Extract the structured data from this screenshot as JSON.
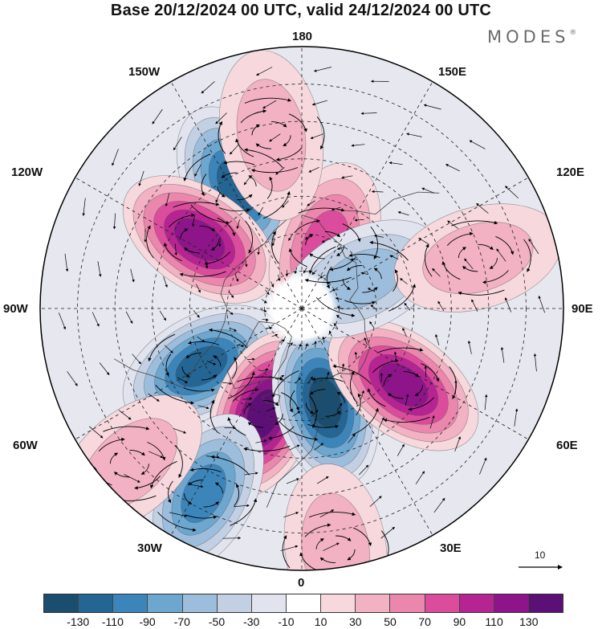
{
  "title": "Base 20/12/2024 00 UTC, valid 24/12/2024 00 UTC",
  "logo": "MODES",
  "logo_mark": "®",
  "longitude_labels": {
    "top": "180",
    "top_left": "150W",
    "top_right": "150E",
    "upper_left": "120W",
    "upper_right": "120E",
    "left": "90W",
    "right": "90E",
    "lower_left": "60W",
    "lower_right": "60E",
    "bottom_left": "30W",
    "bottom_right": "30E",
    "bottom": "0"
  },
  "reference_vector_label": "10",
  "colorbar": {
    "ticks": [
      "-130",
      "-110",
      "-90",
      "-70",
      "-50",
      "-30",
      "-10",
      "10",
      "30",
      "50",
      "70",
      "90",
      "110",
      "130"
    ],
    "colors": [
      "#1b4d6e",
      "#246594",
      "#3c85ba",
      "#6da6cf",
      "#9dbddc",
      "#c3d0e4",
      "#e1e4ef",
      "#ffffff",
      "#f6d8dd",
      "#f2b2c3",
      "#eb86ad",
      "#db4d9c",
      "#b62392",
      "#8d1589",
      "#5c1075"
    ]
  },
  "anomaly_centers": [
    {
      "lon": -152,
      "lat": 53,
      "value": -125,
      "color": "#1b4d6e"
    },
    {
      "lon": -124,
      "lat": 57,
      "value": 128,
      "color": "#8d1589"
    },
    {
      "lon": -60,
      "lat": 59,
      "value": -120,
      "color": "#1b4d6e"
    },
    {
      "lon": -20,
      "lat": 60,
      "value": 132,
      "color": "#5c1075"
    },
    {
      "lon": 14,
      "lat": 64,
      "value": -130,
      "color": "#1b4d6e"
    },
    {
      "lon": 53,
      "lat": 56,
      "value": 110,
      "color": "#8d1589"
    },
    {
      "lon": 160,
      "lat": 72,
      "value": 85,
      "color": "#b62392"
    },
    {
      "lon": 116,
      "lat": 72,
      "value": -55,
      "color": "#9dbddc"
    },
    {
      "lon": 106,
      "lat": 41,
      "value": 40,
      "color": "#f2b2c3"
    },
    {
      "lon": -170,
      "lat": 43,
      "value": 35,
      "color": "#f6d8dd"
    },
    {
      "lon": -28,
      "lat": 34,
      "value": -95,
      "color": "#246594"
    },
    {
      "lon": -48,
      "lat": 28,
      "value": 45,
      "color": "#f2b2c3"
    },
    {
      "lon": 8,
      "lat": 25,
      "value": 45,
      "color": "#f2b2c3"
    }
  ]
}
